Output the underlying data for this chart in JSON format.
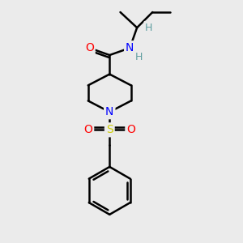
{
  "background_color": "#ebebeb",
  "atom_colors": {
    "C": "#000000",
    "N": "#0000ff",
    "O": "#ff0000",
    "S": "#cccc00",
    "H": "#5f9ea0"
  },
  "bond_color": "#000000",
  "bond_width": 1.8,
  "figsize": [
    3.0,
    3.0
  ],
  "dpi": 100
}
